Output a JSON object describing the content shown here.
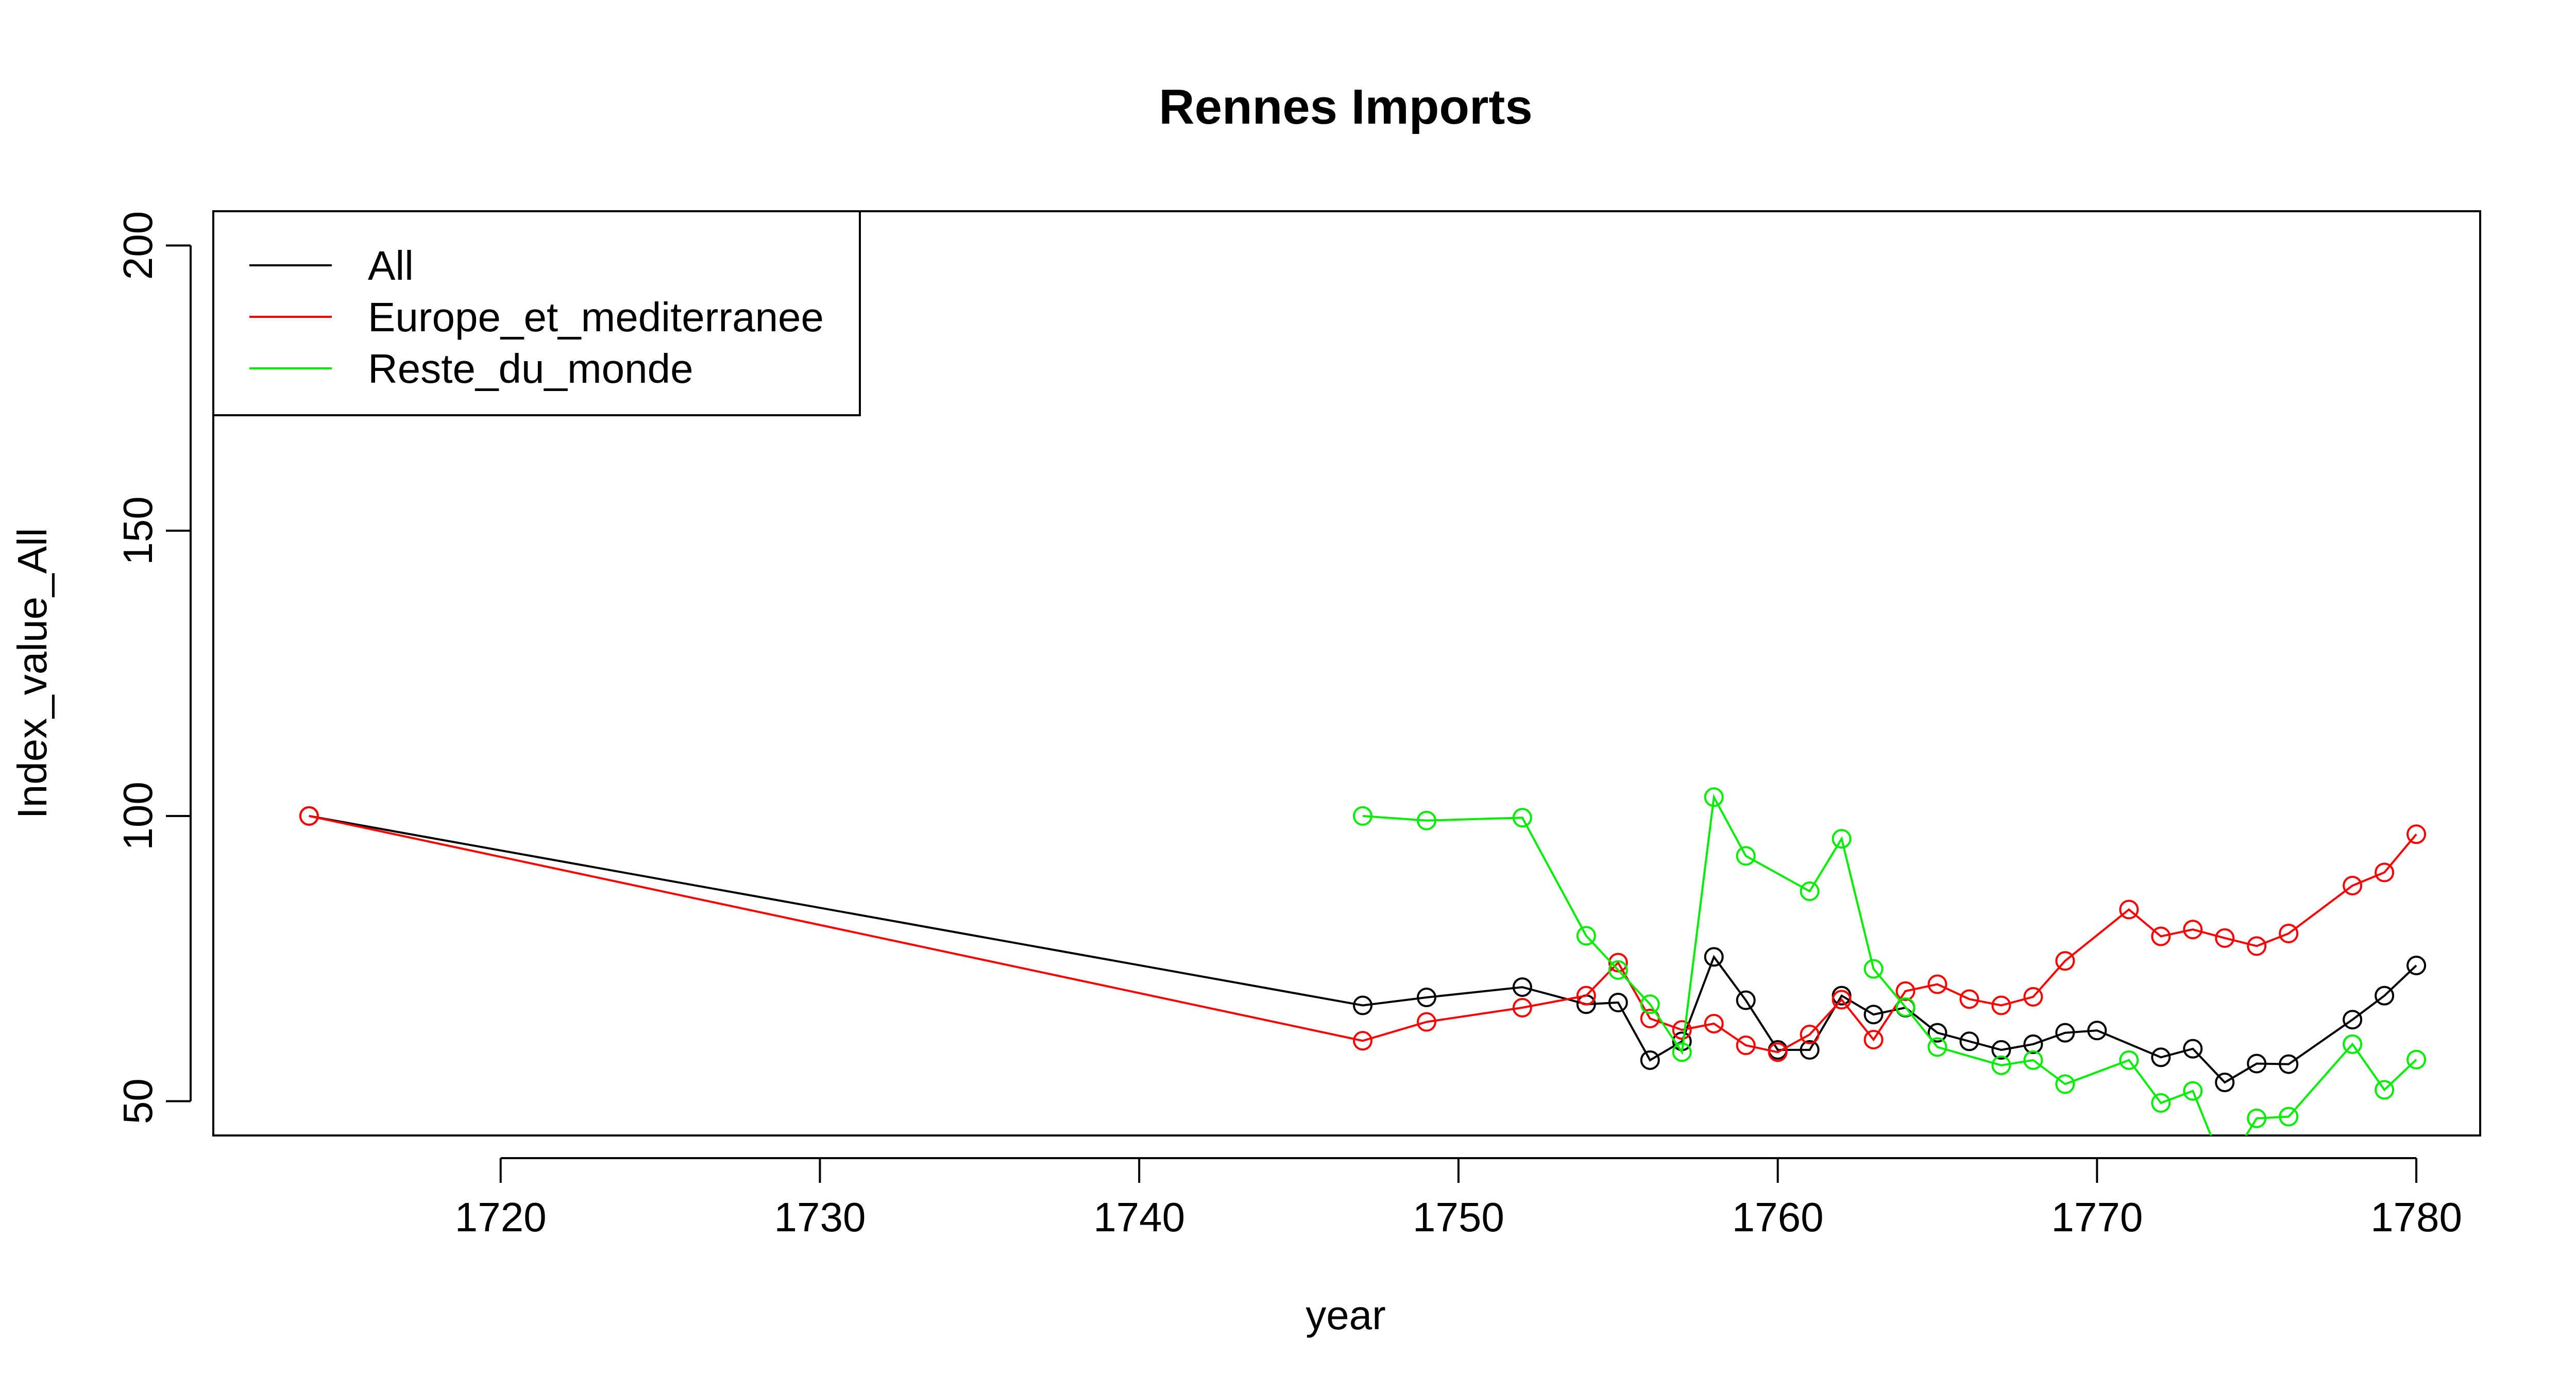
{
  "chart_data": {
    "type": "line",
    "title": "Rennes Imports",
    "xlabel": "year",
    "ylabel": "Index_value_All",
    "xlim": [
      1711,
      1782
    ],
    "ylim": [
      44,
      206
    ],
    "xticks": [
      1720,
      1730,
      1740,
      1750,
      1760,
      1770,
      1780
    ],
    "yticks": [
      50,
      100,
      150,
      200
    ],
    "grid": false,
    "legend_position": "top-left",
    "series": [
      {
        "name": "All",
        "color": "#000000",
        "points": [
          [
            1714,
            100
          ],
          [
            1747,
            66.8
          ],
          [
            1749,
            68.2
          ],
          [
            1752,
            70
          ],
          [
            1754,
            67
          ],
          [
            1755,
            67.3
          ],
          [
            1756,
            57.2
          ],
          [
            1757,
            60.5
          ],
          [
            1758,
            75.3
          ],
          [
            1759,
            67.7
          ],
          [
            1760,
            59
          ],
          [
            1761,
            59
          ],
          [
            1762,
            68.5
          ],
          [
            1763,
            65.2
          ],
          [
            1764,
            66.4
          ],
          [
            1765,
            62
          ],
          [
            1766,
            60.5
          ],
          [
            1767,
            59
          ],
          [
            1768,
            60
          ],
          [
            1769,
            62
          ],
          [
            1770,
            62.4
          ],
          [
            1772,
            57.7
          ],
          [
            1773,
            59.2
          ],
          [
            1774,
            53.3
          ],
          [
            1775,
            56.6
          ],
          [
            1776,
            56.5
          ],
          [
            1778,
            64.3
          ],
          [
            1779,
            68.5
          ],
          [
            1780,
            73.8
          ]
        ]
      },
      {
        "name": "Europe_et_mediterranee",
        "color": "#ff0000",
        "points": [
          [
            1714,
            100
          ],
          [
            1747,
            60.6
          ],
          [
            1749,
            63.9
          ],
          [
            1752,
            66.4
          ],
          [
            1754,
            68.5
          ],
          [
            1755,
            74.3
          ],
          [
            1756,
            64.5
          ],
          [
            1757,
            62.5
          ],
          [
            1758,
            63.6
          ],
          [
            1759,
            59.8
          ],
          [
            1760,
            58.6
          ],
          [
            1761,
            61.7
          ],
          [
            1762,
            67.8
          ],
          [
            1763,
            60.8
          ],
          [
            1764,
            69.3
          ],
          [
            1765,
            70.5
          ],
          [
            1766,
            67.9
          ],
          [
            1767,
            66.8
          ],
          [
            1768,
            68.3
          ],
          [
            1769,
            74.6
          ],
          [
            1771,
            83.6
          ],
          [
            1772,
            78.9
          ],
          [
            1773,
            80.1
          ],
          [
            1774,
            78.6
          ],
          [
            1775,
            77.2
          ],
          [
            1776,
            79.4
          ],
          [
            1778,
            87.8
          ],
          [
            1779,
            90.1
          ],
          [
            1780,
            96.8
          ]
        ]
      },
      {
        "name": "Reste_du_monde",
        "color": "#00ee00",
        "points": [
          [
            1747,
            100
          ],
          [
            1749,
            99.2
          ],
          [
            1752,
            99.7
          ],
          [
            1754,
            79
          ],
          [
            1755,
            73
          ],
          [
            1756,
            67
          ],
          [
            1757,
            58.6
          ],
          [
            1758,
            103.3
          ],
          [
            1759,
            93
          ],
          [
            1761,
            86.8
          ],
          [
            1762,
            96
          ],
          [
            1763,
            73.2
          ],
          [
            1764,
            66.5
          ],
          [
            1765,
            59.5
          ],
          [
            1767,
            56.3
          ],
          [
            1768,
            57.2
          ],
          [
            1769,
            53
          ],
          [
            1771,
            57.2
          ],
          [
            1772,
            49.7
          ],
          [
            1773,
            51.8
          ],
          [
            1774,
            38
          ],
          [
            1775,
            47
          ],
          [
            1776,
            47.3
          ],
          [
            1778,
            60
          ],
          [
            1779,
            52
          ],
          [
            1780,
            57.3
          ]
        ]
      }
    ]
  }
}
